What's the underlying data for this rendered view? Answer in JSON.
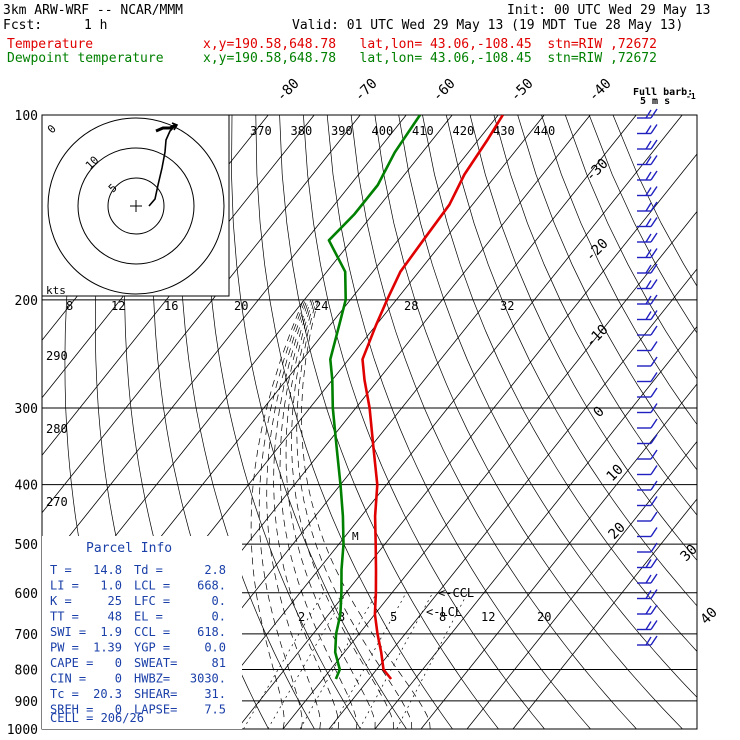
{
  "header": {
    "model": "3km ARW-WRF -- NCAR/MMM",
    "init": "Init: 00 UTC Wed 29 May 13",
    "fcst_label": "Fcst:",
    "fcst_value": "1 h",
    "valid": "Valid: 01 UTC Wed 29 May 13 (19 MDT Tue 28 May 13)",
    "temp_name": "Temperature",
    "dew_name": "Dewpoint temperature",
    "location": "x,y=190.58,648.78   lat,lon= 43.06,-108.45  stn=RIW ,72672"
  },
  "colors": {
    "temperature": "#e00000",
    "dewpoint": "#008000",
    "lines": "#000000"
  },
  "barb_legend": {
    "line1": "Full barb:",
    "line2": "5 m s",
    "exp": "-1"
  },
  "hodograph": {
    "units": "kts",
    "ring_labels": [
      "5",
      "10"
    ],
    "ring_label_extra": "0"
  },
  "temp_scale_top": [
    "-80",
    "-70",
    "-60",
    "-50",
    "-40"
  ],
  "temp_scale_right": [
    "-30",
    "-20",
    "-10",
    "0",
    "10",
    "20",
    "30",
    "40"
  ],
  "theta_e_labels": [
    "370",
    "380",
    "390",
    "400",
    "410",
    "420",
    "430",
    "440"
  ],
  "theta_labels": [
    "290",
    "280",
    "270"
  ],
  "dry_labels": [
    "8",
    "12",
    "16",
    "20",
    "24",
    "28",
    "32"
  ],
  "mixing_labels": [
    "2",
    "3",
    "5",
    "8",
    "12",
    "20"
  ],
  "level_markers": {
    "ccl": "<-CCL",
    "lcl": "<-LCL",
    "small": "M"
  },
  "parcel_info": {
    "title": "Parcel Info",
    "rows": [
      [
        "T  =",
        "14.8",
        "Td =",
        "2.8"
      ],
      [
        "LI =",
        "1.0",
        "LCL =",
        "668."
      ],
      [
        "K  =",
        "25",
        "LFC =",
        "0."
      ],
      [
        "TT =",
        "48",
        "EL  =",
        "0."
      ],
      [
        "SWI =",
        "1.9",
        "CCL =",
        "618."
      ],
      [
        "PW =",
        "1.39",
        "YGP =",
        "0.0"
      ],
      [
        "CAPE =",
        "0",
        "SWEAT=",
        "81"
      ],
      [
        "CIN =",
        "0",
        "HWBZ=",
        "3030."
      ],
      [
        "Tc =",
        "20.3",
        "SHEAR=",
        "31."
      ],
      [
        "SREH =",
        "0",
        "LAPSE=",
        "7.5"
      ]
    ],
    "cell": "CELL = 206/26"
  },
  "chart_data": {
    "type": "line",
    "title": "",
    "xlabel": "",
    "ylabel": "",
    "y_scale": "log",
    "y_ticks": [
      100,
      200,
      300,
      400,
      500,
      600,
      700,
      800,
      900,
      1000
    ],
    "ylim": [
      1000,
      100
    ],
    "series": [
      {
        "name": "Temperature",
        "points": [
          [
            829,
            14.8
          ],
          [
            800,
            11.5
          ],
          [
            750,
            8
          ],
          [
            700,
            4
          ],
          [
            650,
            0
          ],
          [
            600,
            -3.5
          ],
          [
            550,
            -7.5
          ],
          [
            500,
            -12
          ],
          [
            450,
            -17
          ],
          [
            400,
            -22
          ],
          [
            350,
            -29
          ],
          [
            300,
            -37
          ],
          [
            270,
            -43
          ],
          [
            250,
            -47
          ],
          [
            220,
            -50
          ],
          [
            200,
            -52
          ],
          [
            180,
            -54
          ],
          [
            160,
            -54.5
          ],
          [
            140,
            -55
          ],
          [
            125,
            -57
          ],
          [
            110,
            -58
          ],
          [
            100,
            -59
          ]
        ]
      },
      {
        "name": "Dewpoint temperature",
        "points": [
          [
            829,
            2.8
          ],
          [
            800,
            2
          ],
          [
            750,
            -2
          ],
          [
            700,
            -5
          ],
          [
            650,
            -7.5
          ],
          [
            600,
            -11
          ],
          [
            550,
            -15
          ],
          [
            500,
            -19
          ],
          [
            450,
            -24
          ],
          [
            400,
            -30
          ],
          [
            350,
            -37
          ],
          [
            300,
            -45
          ],
          [
            270,
            -50
          ],
          [
            250,
            -54
          ],
          [
            220,
            -58
          ],
          [
            200,
            -61
          ],
          [
            180,
            -66
          ],
          [
            160,
            -75
          ],
          [
            145,
            -74
          ],
          [
            130,
            -74
          ],
          [
            115,
            -76
          ],
          [
            100,
            -77
          ]
        ]
      }
    ]
  }
}
